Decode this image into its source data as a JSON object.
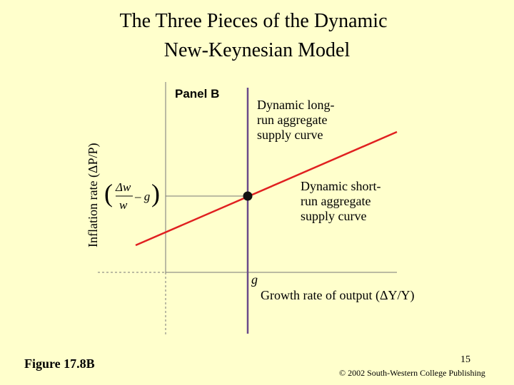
{
  "title": {
    "lines": [
      "The Three Pieces of the Dynamic",
      "New-Keynesian Model"
    ]
  },
  "panel_label": "Panel B",
  "long_run_label": {
    "lines": [
      "Dynamic long-",
      "run aggregate",
      "supply curve"
    ]
  },
  "short_run_label": {
    "lines": [
      "Dynamic short-",
      "run aggregate",
      "supply curve"
    ]
  },
  "y_axis_label": "Inflation rate (ΔP/P)",
  "x_axis_label": "Growth rate of output (ΔY/Y)",
  "x_marker_label": "g",
  "y_marker_label": {
    "numerator": "Δw",
    "denominator": "w",
    "rest": "– g"
  },
  "figure_label": "Figure 17.8B",
  "page_number": "15",
  "copyright": "© 2002 South-Western College Publishing"
}
